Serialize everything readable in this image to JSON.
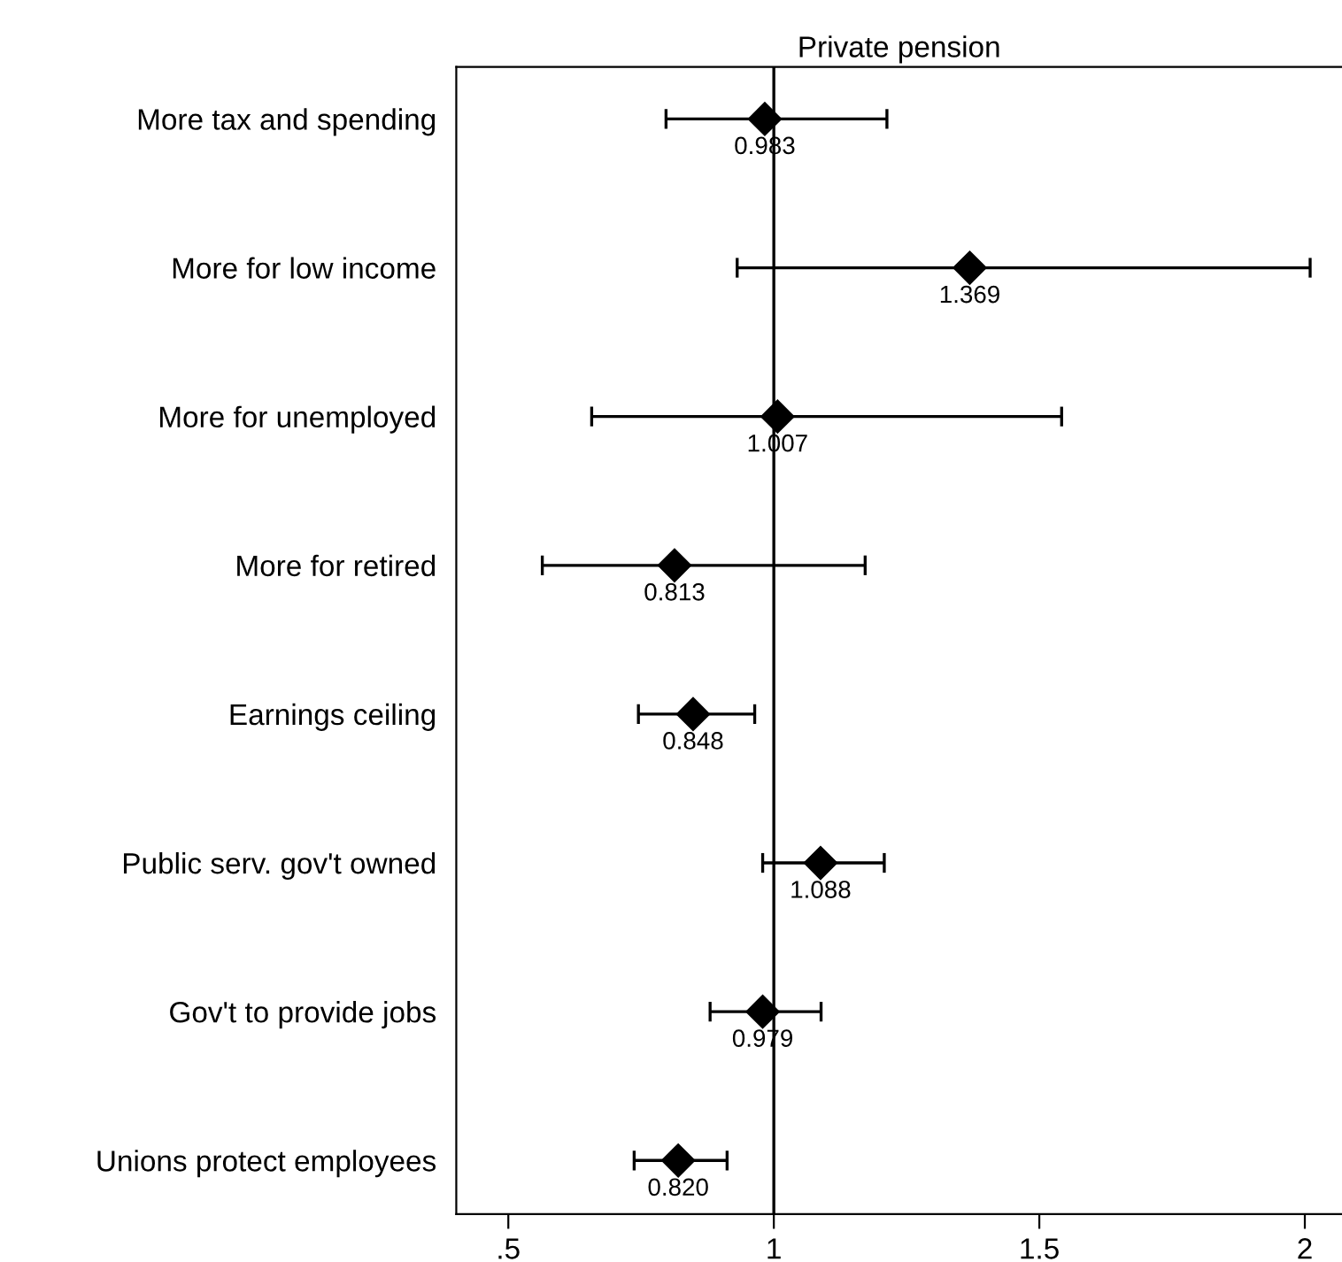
{
  "chart_data": {
    "type": "scatter",
    "orientation": "horizontal",
    "title": "Private pension",
    "categories": [
      "More tax and spending",
      "More for low income",
      "More for unemployed",
      "More for retired",
      "Earnings ceiling",
      "Public serv. gov't owned",
      "Gov't to provide jobs",
      "Unions protect employees"
    ],
    "color": "#000000",
    "values": [
      0.983,
      1.369,
      1.007,
      0.813,
      0.848,
      1.088,
      0.979,
      0.82
    ],
    "errors": [
      [
        0.797,
        1.213
      ],
      [
        0.931,
        2.01
      ],
      [
        0.657,
        1.542
      ],
      [
        0.564,
        1.172
      ],
      [
        0.745,
        0.964
      ],
      [
        0.979,
        1.208
      ],
      [
        0.88,
        1.089
      ],
      [
        0.737,
        0.912
      ]
    ],
    "value_labels": [
      "0.983",
      "1.369",
      "1.007",
      "0.813",
      "0.848",
      "1.088",
      "0.979",
      "0.820"
    ],
    "marker": "diamond",
    "xlim": [
      0.402,
      2.07
    ],
    "xticks": [
      {
        "value": 0.5,
        "label": ".5"
      },
      {
        "value": 1,
        "label": "1"
      },
      {
        "value": 1.5,
        "label": "1.5"
      },
      {
        "value": 2,
        "label": "2"
      }
    ],
    "ref_lines": [
      {
        "axis": "x",
        "value": 1,
        "color": "#000000",
        "line_style": "solid"
      }
    ],
    "grid": false,
    "legend": false
  }
}
